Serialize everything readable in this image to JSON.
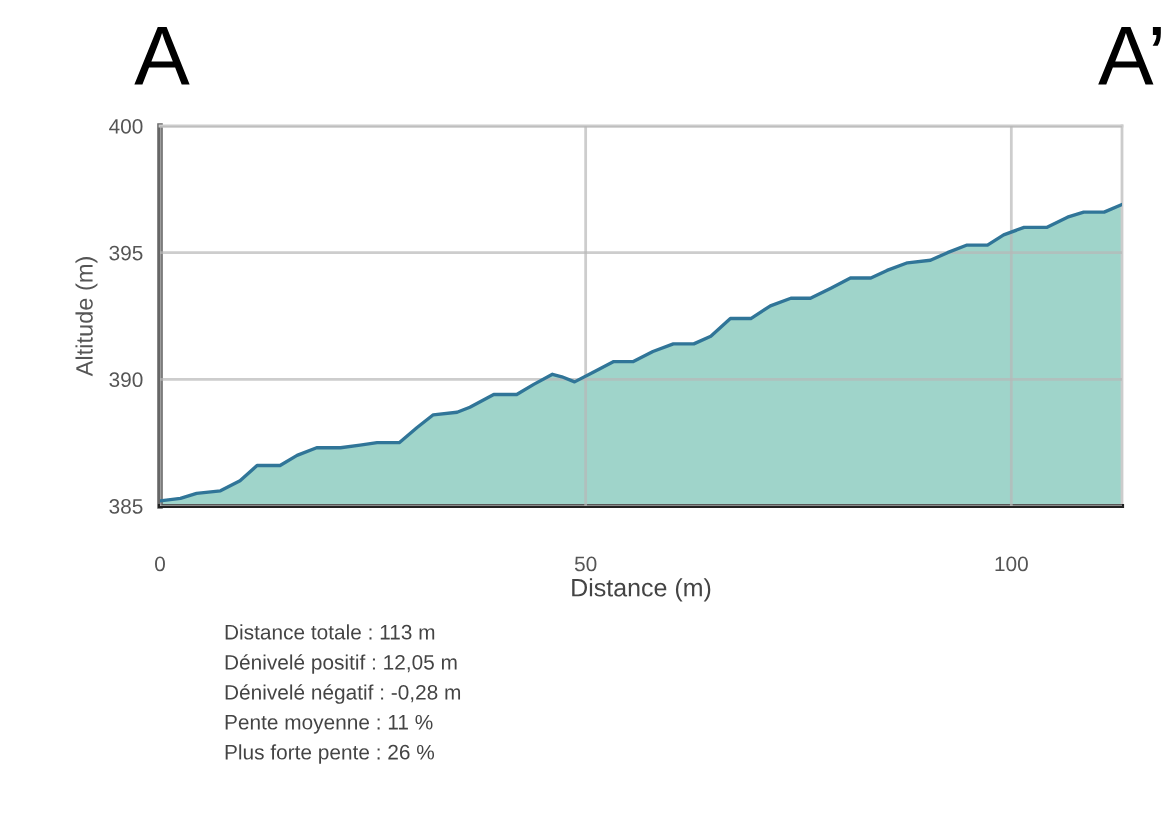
{
  "chart_data": {
    "type": "area",
    "xlabel": "Distance (m)",
    "ylabel": "Altitude (m)",
    "annotations": [
      "A",
      "A’",
      "Distance totale : 113 m",
      "Dénivelé positif : 12,05 m",
      "Dénivelé négatif : -0,28 m",
      "Pente moyenne : 11 %",
      "Plus forte pente : 26 %"
    ],
    "series": [
      {
        "color": "#9fd4ca",
        "x": [
          0,
          2.4,
          4.3,
          7.1,
          9.4,
          11.4,
          14.1,
          16.1,
          18.4,
          21.2,
          23.5,
          25.5,
          28.1,
          30.2,
          32.1,
          34.9,
          36.4,
          39.2,
          41.9,
          43.9,
          46.1,
          47.2,
          48.7,
          51.0,
          53.3,
          55.6,
          57.9,
          60.3,
          62.7,
          64.7,
          67.0,
          69.4,
          71.7,
          74.1,
          76.4,
          78.8,
          81.1,
          83.5,
          85.4,
          87.8,
          90.5,
          92.5,
          94.8,
          97.2,
          99.1,
          101.5,
          104.2,
          106.6,
          108.5,
          110.9,
          113
        ],
        "values": [
          385.2,
          385.3,
          385.5,
          385.6,
          386.0,
          386.6,
          386.6,
          387.0,
          387.3,
          387.3,
          387.4,
          387.5,
          387.5,
          388.1,
          388.6,
          388.7,
          388.9,
          389.4,
          389.4,
          389.8,
          390.2,
          390.1,
          389.9,
          390.3,
          390.7,
          390.7,
          391.1,
          391.4,
          391.4,
          391.7,
          392.4,
          392.4,
          392.9,
          393.2,
          393.2,
          393.6,
          394.0,
          394.0,
          394.3,
          394.6,
          394.7,
          395.0,
          395.3,
          395.3,
          395.7,
          396.0,
          396.0,
          396.4,
          396.6,
          396.6,
          396.9
        ]
      }
    ],
    "xlim": [
      0,
      113
    ],
    "ylim": [
      385,
      400
    ],
    "xticks": [
      0,
      50,
      100
    ],
    "yticks": [
      385,
      390,
      395,
      400
    ],
    "grid": true
  }
}
